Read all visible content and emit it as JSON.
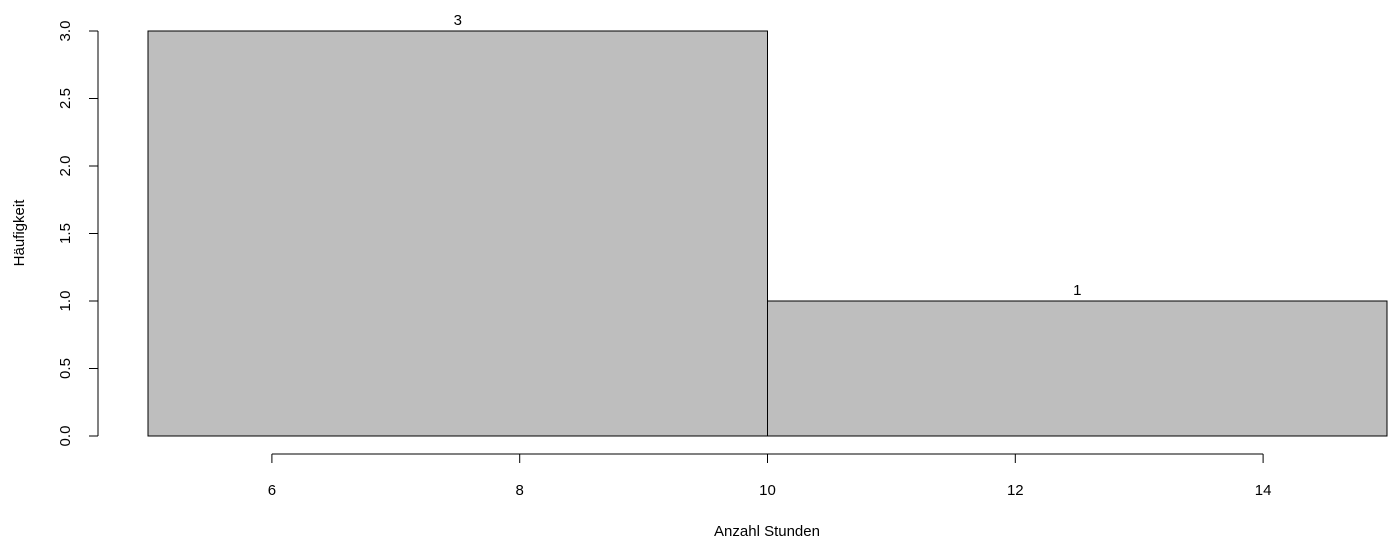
{
  "chart_data": {
    "type": "bar",
    "subtype": "histogram",
    "bins": [
      {
        "start": 5,
        "end": 10,
        "value": 3,
        "label": "3"
      },
      {
        "start": 10,
        "end": 15,
        "value": 1,
        "label": "1"
      }
    ],
    "xlabel": "Anzahl Stunden",
    "ylabel": "Häufigkeit",
    "xticks": [
      6,
      8,
      10,
      12,
      14
    ],
    "xtick_labels": [
      "6",
      "8",
      "10",
      "12",
      "14"
    ],
    "yticks": [
      0,
      0.5,
      1,
      1.5,
      2,
      2.5,
      3
    ],
    "ytick_labels": [
      "0.0",
      "0.5",
      "1.0",
      "1.5",
      "2.0",
      "2.5",
      "3.0"
    ],
    "xlim": [
      5,
      15
    ],
    "ylim": [
      0,
      3
    ],
    "grid": false,
    "bar_color": "#bebebe",
    "edge_color": "#000000"
  }
}
